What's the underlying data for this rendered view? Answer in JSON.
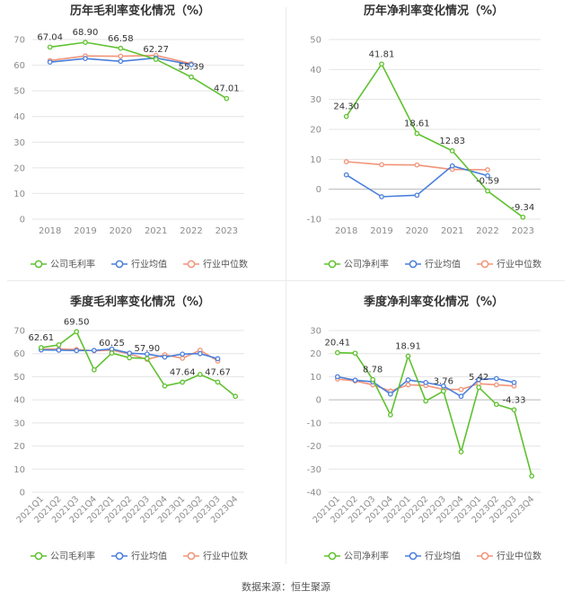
{
  "source_text": "数据来源：恒生聚源",
  "colors": {
    "company": "#5fc12f",
    "industry_avg": "#4a7fdc",
    "industry_median": "#f19478",
    "axis_text": "#8c8c8c",
    "grid": "#e4e4e4",
    "title": "#333333",
    "label": "#333333"
  },
  "chart_data": [
    {
      "type": "line",
      "title": "历年毛利率变化情况（%）",
      "categories": [
        "2018",
        "2019",
        "2020",
        "2021",
        "2022",
        "2023"
      ],
      "ylim": [
        0,
        70
      ],
      "yticks": [
        0,
        10,
        20,
        30,
        40,
        50,
        60,
        70
      ],
      "series": [
        {
          "name": "公司毛利率",
          "role": "company",
          "values": [
            67.04,
            68.9,
            66.58,
            62.27,
            55.39,
            47.01
          ],
          "labels": [
            "67.04",
            "68.90",
            "66.58",
            "62.27",
            "55.39",
            "47.01"
          ]
        },
        {
          "name": "行业均值",
          "role": "industry_avg",
          "values": [
            61.2,
            62.6,
            61.5,
            62.8,
            60.2,
            null
          ]
        },
        {
          "name": "行业中位数",
          "role": "industry_median",
          "values": [
            61.8,
            63.6,
            63.5,
            63.8,
            60.6,
            null
          ]
        }
      ],
      "xlabel": "",
      "ylabel": "",
      "grid": true,
      "legend": "bottom"
    },
    {
      "type": "line",
      "title": "历年净利率变化情况（%）",
      "categories": [
        "2018",
        "2019",
        "2020",
        "2021",
        "2022",
        "2023"
      ],
      "ylim": [
        -10,
        50
      ],
      "yticks": [
        -10,
        0,
        10,
        20,
        30,
        40,
        50
      ],
      "series": [
        {
          "name": "公司净利率",
          "role": "company",
          "values": [
            24.3,
            41.81,
            18.61,
            12.83,
            -0.59,
            -9.34
          ],
          "labels": [
            "24.30",
            "41.81",
            "18.61",
            "12.83",
            "-0.59",
            "-9.34"
          ]
        },
        {
          "name": "行业均值",
          "role": "industry_avg",
          "values": [
            4.8,
            -2.5,
            -2.0,
            7.8,
            4.5,
            null
          ]
        },
        {
          "name": "行业中位数",
          "role": "industry_median",
          "values": [
            9.2,
            8.2,
            8.1,
            6.6,
            6.5,
            null
          ]
        }
      ],
      "xlabel": "",
      "ylabel": "",
      "grid": true,
      "legend": "bottom"
    },
    {
      "type": "line",
      "title": "季度毛利率变化情况（%）",
      "categories": [
        "2021Q1",
        "2021Q2",
        "2021Q3",
        "2021Q4",
        "2022Q1",
        "2022Q2",
        "2022Q3",
        "2022Q4",
        "2023Q1",
        "2023Q2",
        "2023Q3",
        "2023Q4"
      ],
      "ylim": [
        0,
        70
      ],
      "yticks": [
        0,
        10,
        20,
        30,
        40,
        50,
        60,
        70
      ],
      "series": [
        {
          "name": "公司毛利率",
          "role": "company",
          "values": [
            62.61,
            63.8,
            69.5,
            53.0,
            60.25,
            58.2,
            57.9,
            46.0,
            47.64,
            51.0,
            47.67,
            41.5
          ],
          "labels": [
            "62.61",
            "",
            "69.50",
            "",
            "60.25",
            "",
            "57.90",
            "",
            "47.64",
            "",
            "47.67",
            ""
          ]
        },
        {
          "name": "行业均值",
          "role": "industry_avg",
          "values": [
            61.6,
            61.5,
            61.3,
            61.4,
            62.0,
            60.2,
            59.8,
            58.5,
            59.8,
            60.0,
            57.8,
            null
          ]
        },
        {
          "name": "行业中位数",
          "role": "industry_median",
          "values": [
            62.0,
            62.0,
            61.8,
            61.2,
            61.5,
            59.9,
            57.5,
            59.5,
            58.0,
            61.5,
            56.8,
            null
          ]
        }
      ],
      "xlabel": "",
      "ylabel": "",
      "grid": true,
      "legend": "bottom"
    },
    {
      "type": "line",
      "title": "季度净利率变化情况（%）",
      "categories": [
        "2021Q1",
        "2021Q2",
        "2021Q3",
        "2021Q4",
        "2022Q1",
        "2022Q2",
        "2022Q3",
        "2022Q4",
        "2023Q1",
        "2023Q2",
        "2023Q3",
        "2023Q4"
      ],
      "ylim": [
        -40,
        30
      ],
      "yticks": [
        -40,
        -30,
        -20,
        -10,
        0,
        10,
        20,
        30
      ],
      "series": [
        {
          "name": "公司净利率",
          "role": "company",
          "values": [
            20.41,
            20.2,
            8.78,
            -6.5,
            18.91,
            -0.5,
            3.76,
            -22.5,
            5.42,
            -2.0,
            -4.33,
            -33.0
          ],
          "labels": [
            "20.41",
            "",
            "8.78",
            "",
            "18.91",
            "",
            "3.76",
            "",
            "5.42",
            "",
            "-4.33",
            ""
          ]
        },
        {
          "name": "行业均值",
          "role": "industry_avg",
          "values": [
            10.0,
            8.5,
            7.8,
            2.5,
            8.6,
            7.5,
            6.0,
            1.5,
            8.8,
            9.2,
            7.5,
            null
          ]
        },
        {
          "name": "行业中位数",
          "role": "industry_median",
          "values": [
            9.0,
            8.2,
            6.5,
            3.8,
            6.5,
            6.2,
            4.5,
            4.5,
            7.0,
            6.5,
            6.0,
            null
          ]
        }
      ],
      "xlabel": "",
      "ylabel": "",
      "grid": true,
      "legend": "bottom"
    }
  ]
}
